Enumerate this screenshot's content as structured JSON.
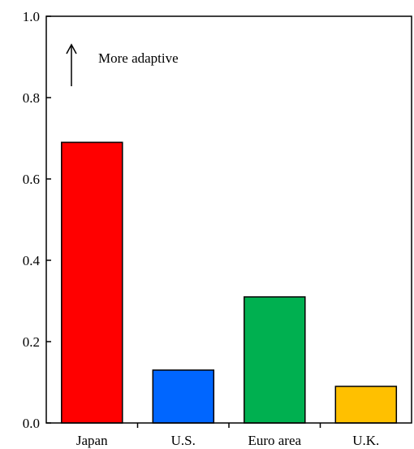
{
  "chart_data": {
    "type": "bar",
    "categories": [
      "Japan",
      "U.S.",
      "Euro area",
      "U.K."
    ],
    "values": [
      0.69,
      0.13,
      0.31,
      0.09
    ],
    "colors": [
      "#ff0000",
      "#0066ff",
      "#00b050",
      "#ffc000"
    ],
    "ylim": [
      0,
      1.0
    ],
    "yticks": [
      "0.0",
      "0.2",
      "0.4",
      "0.6",
      "0.8",
      "1.0"
    ],
    "ytick_values": [
      0,
      0.2,
      0.4,
      0.6,
      0.8,
      1.0
    ],
    "annotation": "More adaptive",
    "annotation_icon": "up-arrow-icon",
    "grid": false,
    "bar_edge_color": "#000000"
  }
}
